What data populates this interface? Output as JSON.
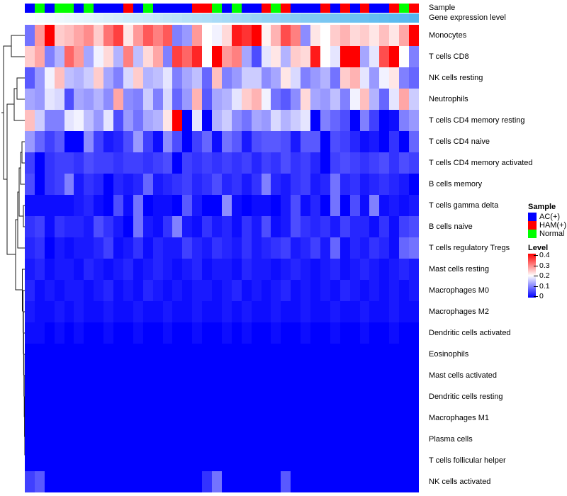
{
  "annotation": {
    "sample_label": "Sample",
    "gene_label": "Gene expression level",
    "group_colors": {
      "AC(+)": "#0000ff",
      "HAM(+)": "#ff0000",
      "Normal": "#00ff00"
    },
    "sample_groups": [
      "AC(+)",
      "Normal",
      "AC(+)",
      "Normal",
      "Normal",
      "AC(+)",
      "Normal",
      "AC(+)",
      "AC(+)",
      "AC(+)",
      "HAM(+)",
      "AC(+)",
      "Normal",
      "AC(+)",
      "AC(+)",
      "AC(+)",
      "AC(+)",
      "HAM(+)",
      "HAM(+)",
      "Normal",
      "AC(+)",
      "Normal",
      "AC(+)",
      "AC(+)",
      "HAM(+)",
      "Normal",
      "HAM(+)",
      "AC(+)",
      "AC(+)",
      "AC(+)",
      "HAM(+)",
      "AC(+)",
      "HAM(+)",
      "AC(+)",
      "HAM(+)",
      "AC(+)",
      "AC(+)",
      "HAM(+)",
      "Normal",
      "HAM(+)"
    ],
    "gene_expression": {
      "low_color": "#fbfeff",
      "high_color": "#53b6ee",
      "values": [
        0,
        0.03,
        0.05,
        0.08,
        0.1,
        0.13,
        0.15,
        0.18,
        0.21,
        0.23,
        0.26,
        0.28,
        0.31,
        0.33,
        0.36,
        0.38,
        0.41,
        0.44,
        0.46,
        0.49,
        0.51,
        0.54,
        0.56,
        0.59,
        0.62,
        0.64,
        0.67,
        0.69,
        0.72,
        0.74,
        0.77,
        0.79,
        0.82,
        0.85,
        0.87,
        0.9,
        0.92,
        0.95,
        0.97,
        1
      ]
    }
  },
  "legend": {
    "sample_title": "Sample",
    "items": [
      {
        "label": "AC(+)",
        "color": "#0000ff"
      },
      {
        "label": "HAM(+)",
        "color": "#ff0000"
      },
      {
        "label": "Normal",
        "color": "#00ff00"
      }
    ],
    "level_title": "Level",
    "level_ticks": [
      "0.4",
      "0.3",
      "0.2",
      "0.1",
      "0"
    ],
    "level_colors": {
      "high": "#ff0000",
      "mid": "#ffffff",
      "low": "#0000ff"
    }
  },
  "chart_data": {
    "type": "heatmap",
    "title": "",
    "columns": 40,
    "value_range": [
      0,
      0.4
    ],
    "colormap": {
      "0": "#0000ff",
      "0.2": "#ffffff",
      "0.4": "#ff0000"
    },
    "legend_position": "right",
    "rows": [
      "Monocytes",
      "T cells CD8",
      "NK cells resting",
      "Neutrophils",
      "T cells CD4 memory resting",
      "T cells CD4 naive",
      "T cells CD4 memory activated",
      "B cells memory",
      "T cells gamma delta",
      "B cells naive",
      "T cells regulatory  Tregs",
      "Mast cells resting",
      "Macrophages M0",
      "Macrophages M2",
      "Dendritic cells activated",
      "Eosinophils",
      "Mast cells activated",
      "Dendritic cells resting",
      "Macrophages M1",
      "Plasma cells",
      "T cells follicular helper",
      "NK cells activated"
    ],
    "matrix": [
      [
        0.09,
        0.28,
        0.4,
        0.24,
        0.25,
        0.27,
        0.29,
        0.24,
        0.31,
        0.35,
        0.22,
        0.28,
        0.33,
        0.3,
        0.33,
        0.1,
        0.12,
        0.28,
        0.2,
        0.19,
        0.23,
        0.38,
        0.36,
        0.4,
        0.21,
        0.26,
        0.34,
        0.3,
        0.11,
        0.22,
        0.2,
        0.24,
        0.26,
        0.23,
        0.24,
        0.22,
        0.25,
        0.22,
        0.27,
        0.4
      ],
      [
        0.24,
        0.27,
        0.1,
        0.14,
        0.32,
        0.28,
        0.13,
        0.19,
        0.23,
        0.14,
        0.3,
        0.15,
        0.23,
        0.27,
        0.1,
        0.35,
        0.32,
        0.37,
        0.2,
        0.4,
        0.28,
        0.3,
        0.13,
        0.06,
        0.18,
        0.22,
        0.14,
        0.24,
        0.23,
        0.38,
        0.2,
        0.18,
        0.4,
        0.4,
        0.13,
        0.18,
        0.34,
        0.4,
        0.2,
        0.1
      ],
      [
        0.07,
        0.12,
        0.19,
        0.25,
        0.15,
        0.14,
        0.16,
        0.24,
        0.13,
        0.1,
        0.17,
        0.24,
        0.14,
        0.15,
        0.18,
        0.1,
        0.13,
        0.15,
        0.08,
        0.25,
        0.1,
        0.12,
        0.16,
        0.16,
        0.11,
        0.13,
        0.22,
        0.17,
        0.1,
        0.12,
        0.14,
        0.09,
        0.24,
        0.26,
        0.18,
        0.12,
        0.19,
        0.22,
        0.1,
        0.08
      ],
      [
        0.13,
        0.12,
        0.18,
        0.17,
        0.06,
        0.13,
        0.12,
        0.14,
        0.11,
        0.27,
        0.11,
        0.1,
        0.16,
        0.1,
        0.17,
        0.08,
        0.12,
        0.26,
        0.07,
        0.13,
        0.14,
        0.18,
        0.24,
        0.26,
        0.19,
        0.09,
        0.07,
        0.11,
        0.23,
        0.13,
        0.12,
        0.15,
        0.1,
        0.19,
        0.25,
        0.14,
        0.08,
        0.18,
        0.27,
        0.16
      ],
      [
        0.25,
        0.16,
        0.1,
        0.1,
        0.18,
        0.19,
        0.15,
        0.12,
        0.18,
        0.06,
        0.12,
        0.09,
        0.13,
        0.14,
        0.22,
        0.4,
        0.0,
        0.18,
        0.0,
        0.14,
        0.16,
        0.11,
        0.09,
        0.13,
        0.12,
        0.17,
        0.14,
        0.16,
        0.18,
        0.0,
        0.1,
        0.08,
        0.06,
        0.0,
        0.1,
        0.05,
        0.0,
        0.01,
        0.1,
        0.12
      ],
      [
        0.12,
        0.08,
        0.05,
        0.07,
        0.0,
        0.0,
        0.11,
        0.05,
        0.02,
        0.03,
        0.06,
        0.12,
        0.05,
        0.01,
        0.11,
        0.06,
        0.0,
        0.05,
        0.08,
        0.01,
        0.09,
        0.07,
        0.02,
        0.06,
        0.07,
        0.07,
        0.06,
        0.02,
        0.07,
        0.07,
        0.0,
        0.06,
        0.05,
        0.03,
        0.01,
        0.02,
        0.0,
        0.04,
        0.0,
        0.08
      ],
      [
        0.05,
        0.0,
        0.04,
        0.05,
        0.05,
        0.04,
        0.06,
        0.05,
        0.05,
        0.04,
        0.05,
        0.05,
        0.04,
        0.05,
        0.06,
        0.0,
        0.05,
        0.04,
        0.05,
        0.04,
        0.05,
        0.04,
        0.05,
        0.03,
        0.05,
        0.04,
        0.06,
        0.04,
        0.05,
        0.03,
        0.0,
        0.05,
        0.06,
        0.05,
        0.04,
        0.05,
        0.06,
        0.04,
        0.06,
        0.05
      ],
      [
        0.06,
        0.0,
        0.04,
        0.05,
        0.1,
        0.02,
        0.04,
        0.03,
        0.0,
        0.03,
        0.02,
        0.03,
        0.08,
        0.02,
        0.03,
        0.04,
        0.05,
        0.03,
        0.04,
        0.06,
        0.03,
        0.04,
        0.02,
        0.04,
        0.1,
        0.03,
        0.02,
        0.04,
        0.05,
        0.02,
        0.03,
        0.09,
        0.03,
        0.04,
        0.02,
        0.03,
        0.04,
        0.03,
        0.02,
        0.0
      ],
      [
        0.01,
        0.01,
        0.01,
        0.01,
        0.01,
        0.02,
        0.03,
        0.01,
        0.0,
        0.06,
        0.01,
        0.09,
        0.0,
        0.01,
        0.01,
        0.0,
        0.07,
        0.02,
        0.0,
        0.0,
        0.11,
        0.01,
        0.0,
        0.01,
        0.01,
        0.0,
        0.02,
        0.06,
        0.01,
        0.03,
        0.0,
        0.09,
        0.0,
        0.06,
        0.01,
        0.1,
        0.01,
        0.02,
        0.01,
        0.02
      ],
      [
        0.04,
        0.05,
        0.01,
        0.04,
        0.03,
        0.03,
        0.02,
        0.06,
        0.04,
        0.02,
        0.0,
        0.09,
        0.02,
        0.01,
        0.04,
        0.1,
        0.02,
        0.01,
        0.04,
        0.02,
        0.03,
        0.01,
        0.04,
        0.02,
        0.06,
        0.01,
        0.02,
        0.06,
        0.04,
        0.03,
        0.04,
        0.02,
        0.05,
        0.03,
        0.03,
        0.01,
        0.04,
        0.01,
        0.05,
        0.06
      ],
      [
        0.03,
        0.04,
        0.0,
        0.02,
        0.01,
        0.02,
        0.02,
        0.03,
        0.05,
        0.01,
        0.02,
        0.04,
        0.01,
        0.03,
        0.02,
        0.02,
        0.05,
        0.03,
        0.02,
        0.04,
        0.03,
        0.02,
        0.04,
        0.02,
        0.03,
        0.04,
        0.05,
        0.02,
        0.03,
        0.05,
        0.02,
        0.08,
        0.01,
        0.03,
        0.02,
        0.04,
        0.03,
        0.01,
        0.08,
        0.09
      ],
      [
        0.02,
        0.03,
        0.01,
        0.02,
        0.02,
        0.01,
        0.03,
        0.02,
        0.01,
        0.02,
        0.03,
        0.01,
        0.02,
        0.03,
        0.02,
        0.01,
        0.02,
        0.03,
        0.01,
        0.02,
        0.02,
        0.01,
        0.03,
        0.02,
        0.02,
        0.01,
        0.02,
        0.03,
        0.02,
        0.01,
        0.02,
        0.03,
        0.01,
        0.02,
        0.03,
        0.02,
        0.01,
        0.02,
        0.03,
        0.02
      ],
      [
        0.03,
        0.01,
        0.02,
        0.01,
        0.02,
        0.02,
        0.01,
        0.02,
        0.03,
        0.01,
        0.02,
        0.01,
        0.03,
        0.02,
        0.01,
        0.02,
        0.01,
        0.02,
        0.02,
        0.01,
        0.02,
        0.03,
        0.01,
        0.02,
        0.01,
        0.02,
        0.03,
        0.01,
        0.02,
        0.01,
        0.02,
        0.01,
        0.03,
        0.02,
        0.01,
        0.02,
        0.01,
        0.02,
        0.01,
        0.02
      ],
      [
        0.02,
        0.01,
        0.01,
        0.02,
        0.01,
        0.02,
        0.01,
        0.01,
        0.02,
        0.01,
        0.01,
        0.02,
        0.01,
        0.01,
        0.02,
        0.01,
        0.01,
        0.02,
        0.01,
        0.01,
        0.02,
        0.01,
        0.02,
        0.01,
        0.01,
        0.02,
        0.01,
        0.01,
        0.02,
        0.01,
        0.01,
        0.02,
        0.01,
        0.01,
        0.02,
        0.01,
        0.01,
        0.02,
        0.01,
        0.01
      ],
      [
        0.01,
        0.01,
        0.0,
        0.01,
        0.0,
        0.01,
        0.0,
        0.0,
        0.01,
        0.0,
        0.0,
        0.01,
        0.0,
        0.0,
        0.01,
        0.0,
        0.0,
        0.01,
        0.0,
        0.0,
        0.01,
        0.0,
        0.01,
        0.0,
        0.0,
        0.01,
        0.0,
        0.0,
        0.01,
        0.0,
        0.0,
        0.01,
        0.0,
        0.0,
        0.01,
        0.0,
        0.0,
        0.01,
        0.0,
        0.0
      ],
      [
        0,
        0,
        0,
        0,
        0,
        0,
        0,
        0,
        0,
        0,
        0,
        0,
        0,
        0,
        0,
        0,
        0,
        0,
        0,
        0,
        0,
        0,
        0,
        0,
        0,
        0,
        0,
        0,
        0,
        0,
        0,
        0,
        0,
        0,
        0,
        0,
        0,
        0,
        0,
        0
      ],
      [
        0,
        0,
        0,
        0,
        0,
        0,
        0,
        0,
        0,
        0,
        0,
        0,
        0,
        0,
        0,
        0,
        0,
        0,
        0,
        0,
        0,
        0,
        0,
        0,
        0,
        0,
        0,
        0,
        0,
        0,
        0,
        0,
        0,
        0,
        0,
        0,
        0,
        0,
        0,
        0
      ],
      [
        0,
        0,
        0,
        0,
        0,
        0,
        0,
        0,
        0,
        0,
        0,
        0,
        0,
        0,
        0,
        0,
        0,
        0,
        0,
        0,
        0,
        0,
        0,
        0,
        0,
        0,
        0,
        0,
        0,
        0,
        0,
        0,
        0,
        0,
        0,
        0,
        0,
        0,
        0,
        0
      ],
      [
        0,
        0,
        0,
        0,
        0,
        0,
        0,
        0,
        0,
        0,
        0,
        0,
        0,
        0,
        0,
        0,
        0,
        0,
        0,
        0,
        0,
        0,
        0,
        0,
        0,
        0,
        0,
        0,
        0,
        0,
        0,
        0,
        0,
        0,
        0,
        0,
        0,
        0,
        0,
        0
      ],
      [
        0,
        0,
        0,
        0,
        0,
        0,
        0,
        0,
        0,
        0,
        0,
        0,
        0,
        0,
        0,
        0,
        0,
        0,
        0,
        0,
        0,
        0,
        0,
        0,
        0,
        0,
        0,
        0,
        0,
        0,
        0,
        0,
        0,
        0,
        0,
        0,
        0,
        0,
        0,
        0
      ],
      [
        0,
        0,
        0,
        0,
        0,
        0,
        0,
        0,
        0,
        0,
        0,
        0,
        0,
        0,
        0,
        0,
        0,
        0,
        0,
        0,
        0,
        0,
        0,
        0,
        0,
        0,
        0,
        0,
        0,
        0,
        0,
        0,
        0,
        0,
        0,
        0,
        0,
        0,
        0,
        0
      ],
      [
        0.05,
        0.07,
        0,
        0,
        0,
        0,
        0,
        0,
        0,
        0,
        0,
        0,
        0,
        0,
        0,
        0,
        0,
        0,
        0.04,
        0.09,
        0,
        0,
        0,
        0,
        0,
        0,
        0.07,
        0,
        0,
        0,
        0,
        0,
        0,
        0,
        0,
        0,
        0,
        0,
        0,
        0
      ]
    ]
  }
}
